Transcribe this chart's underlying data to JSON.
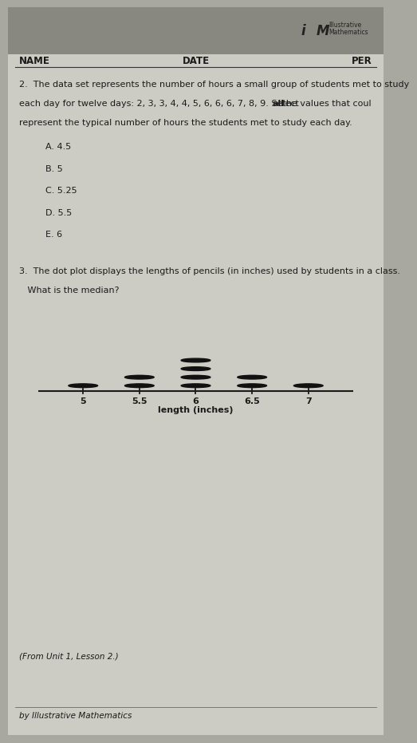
{
  "fig_width": 4.71,
  "fig_height": 9.12,
  "bg_color": "#a8a8a0",
  "paper_color": "#ccccc4",
  "text_color": "#1a1a1a",
  "header_name": "NAME",
  "header_date": "DATE",
  "header_per": "PER",
  "q2_intro": "2.  The data set represents the number of hours a small group of students met to study",
  "q2_line2a": "each day for twelve days: 2, 3, 3, 4, 4, 5, 6, 6, 6, 7, 8, 9. Select ",
  "q2_line2_bold": "all",
  "q2_line2b": " the values that coul",
  "q2_line3": "represent the typical number of hours the students met to study each day.",
  "choices": [
    "A. 4.5",
    "B. 5",
    "C. 5.25",
    "D. 5.5",
    "E. 6"
  ],
  "q3_line1": "3.  The dot plot displays the lengths of pencils (in inches) used by students in a class.",
  "q3_line2": "   What is the median?",
  "dot_data": {
    "5.0": 1,
    "5.5": 2,
    "6.0": 4,
    "6.5": 2,
    "7.0": 1
  },
  "axis_ticks": [
    5,
    5.5,
    6,
    6.5,
    7
  ],
  "axis_label": "length (inches)",
  "axis_min": 4.6,
  "axis_max": 7.4,
  "footer": "(From Unit 1, Lesson 2.)",
  "credit": "by Illustrative Mathematics",
  "dot_color": "#111111",
  "font_body": 8.5,
  "font_small": 7.5,
  "font_credit": 7.5
}
